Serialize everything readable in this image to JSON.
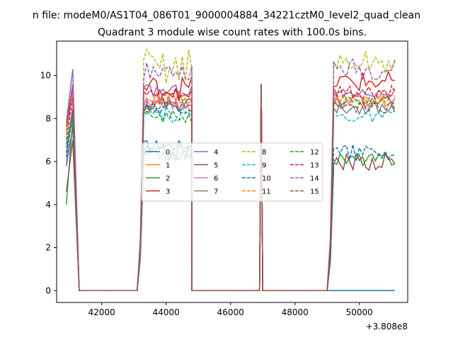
{
  "chart_data": {
    "type": "line",
    "title": "n file: modeM0/AS1T04_086T01_9000004884_34221cztM0_level2_quad_clean",
    "subtitle": "Quadrant 3 module wise count rates with 100.0s bins.",
    "xlabel": "",
    "ylabel": "",
    "x_offset_label": "+3.808e8",
    "xlim": [
      40600,
      51500
    ],
    "ylim": [
      -0.55,
      11.6
    ],
    "x_ticks": [
      42000,
      44000,
      46000,
      48000,
      50000
    ],
    "x_tick_labels": [
      "42000",
      "44000",
      "46000",
      "48000",
      "50000"
    ],
    "y_ticks": [
      0,
      2,
      4,
      6,
      8,
      10
    ],
    "y_tick_labels": [
      "0",
      "2",
      "4",
      "6",
      "8",
      "10"
    ],
    "grid": false,
    "legend_position": "center",
    "x_segments": [
      [
        40900,
        41100
      ],
      [
        41100,
        41300
      ],
      [
        43100,
        43300
      ],
      [
        43300,
        44800
      ],
      [
        44800,
        46900
      ],
      [
        46900,
        47000
      ],
      [
        47000,
        49000
      ],
      [
        49000,
        49200
      ],
      [
        49200,
        51100
      ]
    ],
    "series": [
      {
        "name": "0",
        "color": "#1f77b4",
        "dash": "solid",
        "gaps": [
          5.8,
          7.6,
          0,
          0,
          6.5,
          7.0,
          0,
          0,
          0,
          0
        ]
      },
      {
        "name": "1",
        "color": "#ff7f0e",
        "dash": "solid",
        "gaps": [
          7.8,
          9.4,
          0,
          0,
          8.2,
          9.3,
          0,
          0,
          8.5,
          9.0
        ]
      },
      {
        "name": "2",
        "color": "#2ca02c",
        "dash": "solid",
        "gaps": [
          4.0,
          8.0,
          0,
          0,
          6.0,
          6.8,
          0,
          0,
          5.8,
          6.4
        ]
      },
      {
        "name": "3",
        "color": "#d62728",
        "dash": "solid",
        "gaps": [
          7.6,
          9.6,
          0,
          0,
          8.8,
          10.0,
          0,
          0,
          9.2,
          10.2
        ]
      },
      {
        "name": "4",
        "color": "#9467bd",
        "dash": "solid",
        "gaps": [
          7.8,
          10.3,
          0,
          0,
          9.0,
          9.6,
          0,
          0,
          9.0,
          9.4
        ]
      },
      {
        "name": "5",
        "color": "#8c564b",
        "dash": "solid",
        "gaps": [
          4.6,
          7.0,
          0,
          0,
          8.3,
          9.0,
          0,
          0,
          5.6,
          6.4
        ]
      },
      {
        "name": "6",
        "color": "#e377c2",
        "dash": "solid",
        "gaps": [
          6.0,
          8.6,
          0,
          0,
          8.4,
          9.0,
          0,
          0,
          8.4,
          9.2
        ]
      },
      {
        "name": "7",
        "color": "#7f7f7f",
        "dash": "solid",
        "gaps": [
          6.6,
          8.2,
          0,
          0,
          6.0,
          6.8,
          0,
          0,
          8.2,
          8.8
        ]
      },
      {
        "name": "8",
        "color": "#bcbd22",
        "dash": "dashed",
        "gaps": [
          7.2,
          9.0,
          0,
          0,
          9.6,
          11.3,
          0,
          0,
          10.0,
          11.2
        ]
      },
      {
        "name": "9",
        "color": "#17becf",
        "dash": "dashed",
        "gaps": [
          6.6,
          8.4,
          0,
          0,
          7.8,
          8.6,
          0,
          0,
          7.8,
          8.4
        ]
      },
      {
        "name": "10",
        "color": "#1f77b4",
        "dash": "dashed",
        "gaps": [
          6.2,
          8.2,
          0,
          0,
          8.2,
          8.8,
          0,
          0,
          6.0,
          6.9
        ]
      },
      {
        "name": "11",
        "color": "#ff7f0e",
        "dash": "dashed",
        "gaps": [
          7.4,
          9.2,
          0,
          0,
          8.6,
          9.2,
          0,
          0,
          8.6,
          9.2
        ]
      },
      {
        "name": "12",
        "color": "#2ca02c",
        "dash": "dashed",
        "gaps": [
          6.8,
          8.4,
          0,
          0,
          7.8,
          8.4,
          0,
          0,
          8.6,
          9.0
        ]
      },
      {
        "name": "13",
        "color": "#d62728",
        "dash": "dashed",
        "gaps": [
          7.0,
          9.0,
          0,
          0,
          8.8,
          9.4,
          0,
          0,
          8.8,
          9.6
        ]
      },
      {
        "name": "14",
        "color": "#9467bd",
        "dash": "dashed",
        "gaps": [
          7.0,
          9.6,
          0,
          0,
          9.8,
          10.6,
          0,
          0,
          9.8,
          10.8
        ]
      },
      {
        "name": "15",
        "color": "#8c564b",
        "dash": "dashed",
        "gaps": [
          6.4,
          8.4,
          0,
          0,
          8.2,
          8.8,
          0,
          0,
          8.2,
          8.8
        ]
      }
    ]
  }
}
